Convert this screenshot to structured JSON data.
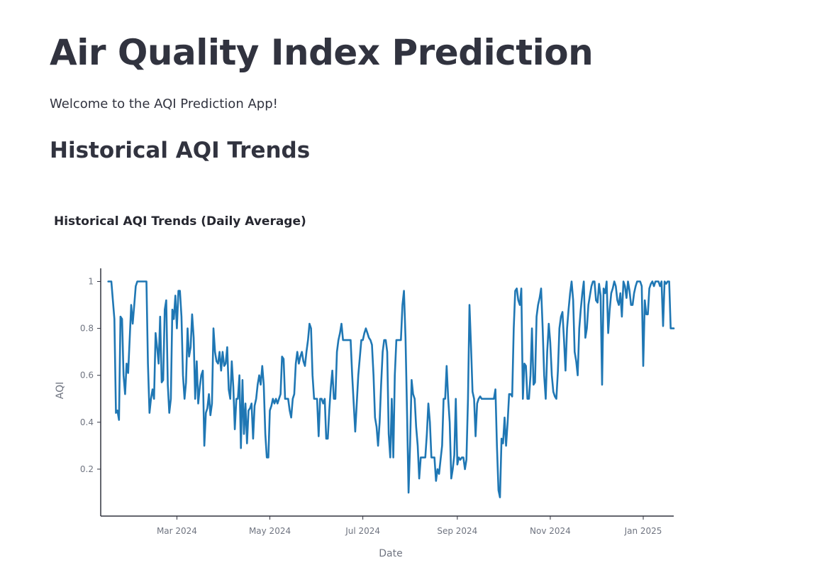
{
  "page": {
    "title": "Air Quality Index Prediction",
    "welcome": "Welcome to the AQI Prediction App!",
    "section_title": "Historical AQI Trends"
  },
  "colors": {
    "line": "#1f77b4",
    "axis": "#31333f",
    "text": "#31333f",
    "tick": "#6f7480"
  },
  "chart_data": {
    "type": "line",
    "title": "Historical AQI Trends (Daily Average)",
    "xlabel": "Date",
    "ylabel": "AQI",
    "xlim": [
      "2024-01-11",
      "2025-01-21"
    ],
    "ylim": [
      0,
      1.05
    ],
    "x_ticks": [
      "2024-03-01",
      "2024-05-01",
      "2024-07-01",
      "2024-09-01",
      "2024-11-01",
      "2025-01-01"
    ],
    "x_tick_labels": [
      "Mar 2024",
      "May 2024",
      "Jul 2024",
      "Sep 2024",
      "Nov 2024",
      "Jan 2025"
    ],
    "y_ticks": [
      0.2,
      0.4,
      0.6,
      0.8,
      1
    ],
    "y_tick_labels": [
      "0.2",
      "0.4",
      "0.6",
      "0.8",
      "1"
    ],
    "grid": false,
    "series": [
      {
        "x": [
          "2024-01-16",
          "2024-01-18",
          "2024-01-20",
          "2024-01-21",
          "2024-01-22",
          "2024-01-23",
          "2024-01-24",
          "2024-01-25",
          "2024-01-26",
          "2024-01-27",
          "2024-01-28",
          "2024-01-29",
          "2024-01-30",
          "2024-01-31",
          "2024-02-01",
          "2024-02-02",
          "2024-02-03",
          "2024-02-04",
          "2024-02-05",
          "2024-02-06",
          "2024-02-08",
          "2024-02-10",
          "2024-02-11",
          "2024-02-12",
          "2024-02-13",
          "2024-02-14",
          "2024-02-15",
          "2024-02-16",
          "2024-02-17",
          "2024-02-18",
          "2024-02-19",
          "2024-02-20",
          "2024-02-21",
          "2024-02-22",
          "2024-02-23",
          "2024-02-24",
          "2024-02-25",
          "2024-02-26",
          "2024-02-27",
          "2024-02-28",
          "2024-02-29",
          "2024-03-01",
          "2024-03-02",
          "2024-03-03",
          "2024-03-04",
          "2024-03-05",
          "2024-03-06",
          "2024-03-07",
          "2024-03-08",
          "2024-03-09",
          "2024-03-10",
          "2024-03-11",
          "2024-03-12",
          "2024-03-13",
          "2024-03-14",
          "2024-03-15",
          "2024-03-16",
          "2024-03-17",
          "2024-03-18",
          "2024-03-19",
          "2024-03-20",
          "2024-03-21",
          "2024-03-22",
          "2024-03-23",
          "2024-03-24",
          "2024-03-25",
          "2024-03-26",
          "2024-03-27",
          "2024-03-28",
          "2024-03-29",
          "2024-03-30",
          "2024-03-31",
          "2024-04-01",
          "2024-04-02",
          "2024-04-03",
          "2024-04-04",
          "2024-04-05",
          "2024-04-06",
          "2024-04-07",
          "2024-04-08",
          "2024-04-09",
          "2024-04-10",
          "2024-04-11",
          "2024-04-12",
          "2024-04-13",
          "2024-04-14",
          "2024-04-15",
          "2024-04-16",
          "2024-04-17",
          "2024-04-18",
          "2024-04-19",
          "2024-04-20",
          "2024-04-21",
          "2024-04-22",
          "2024-04-23",
          "2024-04-24",
          "2024-04-25",
          "2024-04-26",
          "2024-04-27",
          "2024-04-28",
          "2024-04-29",
          "2024-04-30",
          "2024-05-01",
          "2024-05-02",
          "2024-05-03",
          "2024-05-04",
          "2024-05-05",
          "2024-05-06",
          "2024-05-07",
          "2024-05-08",
          "2024-05-09",
          "2024-05-10",
          "2024-05-11",
          "2024-05-12",
          "2024-05-13",
          "2024-05-14",
          "2024-05-15",
          "2024-05-16",
          "2024-05-17",
          "2024-05-18",
          "2024-05-19",
          "2024-05-20",
          "2024-05-21",
          "2024-05-22",
          "2024-05-23",
          "2024-05-24",
          "2024-05-25",
          "2024-05-26",
          "2024-05-27",
          "2024-05-28",
          "2024-05-29",
          "2024-05-30",
          "2024-05-31",
          "2024-06-01",
          "2024-06-02",
          "2024-06-03",
          "2024-06-04",
          "2024-06-05",
          "2024-06-06",
          "2024-06-07",
          "2024-06-08",
          "2024-06-09",
          "2024-06-10",
          "2024-06-11",
          "2024-06-12",
          "2024-06-13",
          "2024-06-14",
          "2024-06-15",
          "2024-06-16",
          "2024-06-17",
          "2024-06-18",
          "2024-06-19",
          "2024-06-20",
          "2024-06-21",
          "2024-06-22",
          "2024-06-23",
          "2024-06-24",
          "2024-06-26",
          "2024-06-28",
          "2024-06-30",
          "2024-07-01",
          "2024-07-02",
          "2024-07-03",
          "2024-07-04",
          "2024-07-05",
          "2024-07-06",
          "2024-07-07",
          "2024-07-08",
          "2024-07-09",
          "2024-07-10",
          "2024-07-11",
          "2024-07-12",
          "2024-07-13",
          "2024-07-14",
          "2024-07-15",
          "2024-07-16",
          "2024-07-17",
          "2024-07-18",
          "2024-07-19",
          "2024-07-20",
          "2024-07-21",
          "2024-07-22",
          "2024-07-23",
          "2024-07-24",
          "2024-07-25",
          "2024-07-26",
          "2024-07-27",
          "2024-07-28",
          "2024-07-29",
          "2024-07-30",
          "2024-07-31",
          "2024-08-01",
          "2024-08-02",
          "2024-08-03",
          "2024-08-04",
          "2024-08-05",
          "2024-08-06",
          "2024-08-07",
          "2024-08-08",
          "2024-08-09",
          "2024-08-10",
          "2024-08-11",
          "2024-08-12",
          "2024-08-13",
          "2024-08-14",
          "2024-08-15",
          "2024-08-16",
          "2024-08-17",
          "2024-08-18",
          "2024-08-19",
          "2024-08-20",
          "2024-08-21",
          "2024-08-22",
          "2024-08-23",
          "2024-08-24",
          "2024-08-25",
          "2024-08-26",
          "2024-08-27",
          "2024-08-28",
          "2024-08-29",
          "2024-08-30",
          "2024-08-31",
          "2024-09-01",
          "2024-09-02",
          "2024-09-03",
          "2024-09-04",
          "2024-09-05",
          "2024-09-06",
          "2024-09-07",
          "2024-09-08",
          "2024-09-09",
          "2024-09-10",
          "2024-09-11",
          "2024-09-12",
          "2024-09-13",
          "2024-09-14",
          "2024-09-15",
          "2024-09-16",
          "2024-09-17",
          "2024-09-18",
          "2024-09-19",
          "2024-09-20",
          "2024-09-21",
          "2024-09-22",
          "2024-09-23",
          "2024-09-24",
          "2024-09-25",
          "2024-09-26",
          "2024-09-27",
          "2024-09-28",
          "2024-09-29",
          "2024-09-30",
          "2024-10-01",
          "2024-10-02",
          "2024-10-03",
          "2024-10-04",
          "2024-10-05",
          "2024-10-06",
          "2024-10-07",
          "2024-10-08",
          "2024-10-09",
          "2024-10-10",
          "2024-10-11",
          "2024-10-12",
          "2024-10-13",
          "2024-10-14",
          "2024-10-15",
          "2024-10-16",
          "2024-10-17",
          "2024-10-18",
          "2024-10-19",
          "2024-10-20",
          "2024-10-21",
          "2024-10-22",
          "2024-10-23",
          "2024-10-24",
          "2024-10-25",
          "2024-10-26",
          "2024-10-27",
          "2024-10-28",
          "2024-10-29",
          "2024-10-30",
          "2024-10-31",
          "2024-11-01",
          "2024-11-02",
          "2024-11-03",
          "2024-11-04",
          "2024-11-05",
          "2024-11-06",
          "2024-11-07",
          "2024-11-08",
          "2024-11-09",
          "2024-11-10",
          "2024-11-11",
          "2024-11-12",
          "2024-11-13",
          "2024-11-14",
          "2024-11-15",
          "2024-11-16",
          "2024-11-17",
          "2024-11-18",
          "2024-11-19",
          "2024-11-20",
          "2024-11-21",
          "2024-11-22",
          "2024-11-23",
          "2024-11-24",
          "2024-11-25",
          "2024-11-26",
          "2024-11-27",
          "2024-11-28",
          "2024-11-29",
          "2024-11-30",
          "2024-12-01",
          "2024-12-02",
          "2024-12-03",
          "2024-12-04",
          "2024-12-05",
          "2024-12-06",
          "2024-12-07",
          "2024-12-08",
          "2024-12-09",
          "2024-12-10",
          "2024-12-11",
          "2024-12-12",
          "2024-12-13",
          "2024-12-14",
          "2024-12-15",
          "2024-12-16",
          "2024-12-17",
          "2024-12-18",
          "2024-12-19",
          "2024-12-20",
          "2024-12-21",
          "2024-12-22",
          "2024-12-23",
          "2024-12-24",
          "2024-12-25",
          "2024-12-26",
          "2024-12-27",
          "2024-12-28",
          "2024-12-29",
          "2024-12-30",
          "2024-12-31",
          "2025-01-01",
          "2025-01-02",
          "2025-01-03",
          "2025-01-04",
          "2025-01-05",
          "2025-01-06",
          "2025-01-07",
          "2025-01-08",
          "2025-01-09",
          "2025-01-10",
          "2025-01-11",
          "2025-01-12",
          "2025-01-13",
          "2025-01-14",
          "2025-01-15",
          "2025-01-16",
          "2025-01-17",
          "2025-01-18",
          "2025-01-19",
          "2025-01-20",
          "2025-01-21"
        ],
        "y": [
          1,
          1,
          0.84,
          0.44,
          0.45,
          0.41,
          0.85,
          0.84,
          0.6,
          0.52,
          0.65,
          0.61,
          0.75,
          0.9,
          0.82,
          0.9,
          0.98,
          1,
          1,
          1,
          1,
          1,
          0.65,
          0.44,
          0.5,
          0.54,
          0.5,
          0.78,
          0.72,
          0.65,
          0.85,
          0.57,
          0.58,
          0.88,
          0.92,
          0.56,
          0.44,
          0.5,
          0.88,
          0.84,
          0.94,
          0.8,
          0.96,
          0.96,
          0.85,
          0.6,
          0.5,
          0.57,
          0.8,
          0.68,
          0.72,
          0.86,
          0.76,
          0.5,
          0.66,
          0.48,
          0.55,
          0.6,
          0.62,
          0.3,
          0.44,
          0.46,
          0.52,
          0.43,
          0.48,
          0.8,
          0.7,
          0.66,
          0.65,
          0.7,
          0.62,
          0.7,
          0.64,
          0.65,
          0.72,
          0.54,
          0.5,
          0.66,
          0.55,
          0.37,
          0.5,
          0.5,
          0.6,
          0.29,
          0.58,
          0.35,
          0.48,
          0.31,
          0.45,
          0.46,
          0.48,
          0.33,
          0.47,
          0.5,
          0.56,
          0.6,
          0.56,
          0.64,
          0.56,
          0.35,
          0.25,
          0.25,
          0.45,
          0.47,
          0.5,
          0.48,
          0.5,
          0.48,
          0.5,
          0.52,
          0.68,
          0.67,
          0.5,
          0.5,
          0.5,
          0.45,
          0.42,
          0.5,
          0.52,
          0.65,
          0.7,
          0.65,
          0.68,
          0.7,
          0.66,
          0.64,
          0.7,
          0.75,
          0.82,
          0.8,
          0.6,
          0.5,
          0.5,
          0.5,
          0.34,
          0.5,
          0.5,
          0.48,
          0.5,
          0.33,
          0.33,
          0.45,
          0.55,
          0.62,
          0.5,
          0.5,
          0.7,
          0.75,
          0.78,
          0.82,
          0.75,
          0.75,
          0.75,
          0.75,
          0.75,
          0.75,
          0.6,
          0.36,
          0.6,
          0.75,
          0.75,
          0.78,
          0.8,
          0.78,
          0.76,
          0.75,
          0.73,
          0.6,
          0.42,
          0.38,
          0.3,
          0.4,
          0.56,
          0.7,
          0.75,
          0.75,
          0.7,
          0.35,
          0.25,
          0.5,
          0.25,
          0.6,
          0.75,
          0.75,
          0.75,
          0.75,
          0.9,
          0.96,
          0.76,
          0.45,
          0.1,
          0.3,
          0.58,
          0.52,
          0.5,
          0.38,
          0.3,
          0.16,
          0.25,
          0.25,
          0.25,
          0.25,
          0.35,
          0.48,
          0.4,
          0.25,
          0.25,
          0.25,
          0.15,
          0.2,
          0.18,
          0.24,
          0.3,
          0.5,
          0.5,
          0.64,
          0.5,
          0.4,
          0.16,
          0.2,
          0.26,
          0.5,
          0.22,
          0.25,
          0.24,
          0.25,
          0.25,
          0.2,
          0.24,
          0.5,
          0.9,
          0.72,
          0.53,
          0.5,
          0.34,
          0.48,
          0.5,
          0.51,
          0.5,
          0.5,
          0.5,
          0.5,
          0.5,
          0.5,
          0.5,
          0.5,
          0.5,
          0.54,
          0.3,
          0.11,
          0.08,
          0.33,
          0.31,
          0.42,
          0.3,
          0.4,
          0.52,
          0.52,
          0.51,
          0.8,
          0.96,
          0.97,
          0.92,
          0.9,
          0.97,
          0.5,
          0.65,
          0.64,
          0.5,
          0.5,
          0.6,
          0.8,
          0.56,
          0.57,
          0.85,
          0.9,
          0.93,
          0.97,
          0.8,
          0.6,
          0.5,
          0.7,
          0.82,
          0.74,
          0.6,
          0.53,
          0.51,
          0.5,
          0.62,
          0.8,
          0.85,
          0.87,
          0.75,
          0.62,
          0.8,
          0.88,
          0.95,
          1,
          0.92,
          0.7,
          0.66,
          0.6,
          0.8,
          0.88,
          0.95,
          1,
          0.76,
          0.8,
          0.9,
          0.94,
          0.98,
          1,
          1,
          0.92,
          0.91,
          0.99,
          0.94,
          0.56,
          0.97,
          0.95,
          1,
          0.78,
          0.88,
          0.95,
          0.97,
          1,
          0.98,
          0.92,
          0.9,
          0.95,
          0.85,
          1,
          0.98,
          0.93,
          1,
          0.96,
          0.9,
          0.9,
          0.95,
          0.98,
          1,
          1,
          1,
          0.98,
          0.64,
          0.92,
          0.86,
          0.86,
          0.97,
          0.99,
          1,
          0.98,
          1,
          1,
          1,
          0.98,
          1,
          0.81,
          1,
          0.99,
          1,
          1,
          0.8,
          0.8,
          0.8
        ],
        "name": ""
      }
    ]
  }
}
